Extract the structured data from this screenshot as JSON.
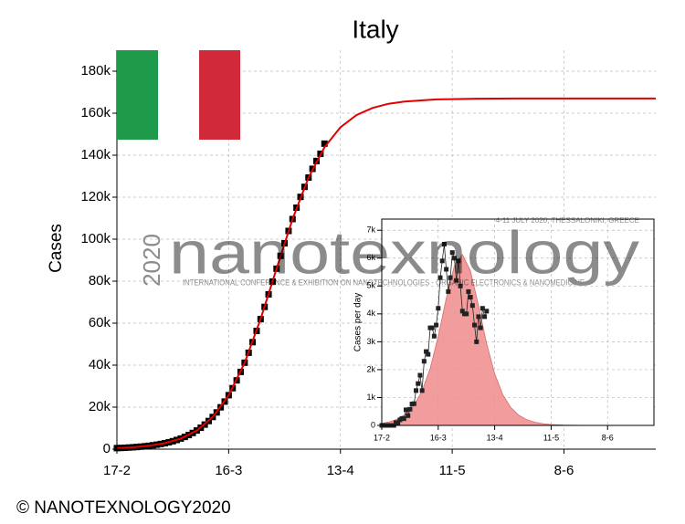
{
  "chart_data": [
    {
      "type": "line",
      "title": "Italy",
      "ylabel": "Cases",
      "xlim": [
        0,
        135
      ],
      "ylim": [
        0,
        190000
      ],
      "xticks": [
        {
          "value": 0,
          "label": "17-2"
        },
        {
          "value": 28,
          "label": "16-3"
        },
        {
          "value": 56,
          "label": "13-4"
        },
        {
          "value": 84,
          "label": "11-5"
        },
        {
          "value": 112,
          "label": "8-6"
        }
      ],
      "yticks": [
        0,
        {
          "value": 20000,
          "label": "20k"
        },
        {
          "value": 40000,
          "label": "40k"
        },
        {
          "value": 60000,
          "label": "60k"
        },
        {
          "value": 80000,
          "label": "80k"
        },
        {
          "value": 100000,
          "label": "100k"
        },
        {
          "value": 120000,
          "label": "120k"
        },
        {
          "value": 140000,
          "label": "140k"
        },
        {
          "value": 160000,
          "label": "160k"
        },
        {
          "value": 180000,
          "label": "180k"
        }
      ],
      "grid": true,
      "series": [
        {
          "color": "#000000",
          "mode": "markers",
          "x": [
            0,
            1,
            2,
            3,
            4,
            5,
            6,
            7,
            8,
            9,
            10,
            11,
            12,
            13,
            14,
            15,
            16,
            17,
            18,
            19,
            20,
            21,
            22,
            23,
            24,
            25,
            26,
            27,
            28,
            29,
            30,
            31,
            32,
            33,
            34,
            35,
            36,
            37,
            38,
            39,
            40,
            41,
            42,
            43,
            44,
            45,
            46,
            47,
            48,
            49,
            50,
            51,
            52
          ],
          "values": [
            494,
            572,
            661,
            766,
            887,
            1026,
            1186,
            1374,
            1589,
            1839,
            2125,
            2459,
            2840,
            3281,
            3784,
            4372,
            5044,
            5819,
            6707,
            7705,
            8869,
            10190,
            11686,
            13392,
            15314,
            17487,
            19928,
            22659,
            25692,
            29033,
            32745,
            36784,
            41174,
            45904,
            50961,
            56305,
            61920,
            67748,
            73731,
            79828,
            85950,
            92062,
            98063,
            103920,
            109580,
            115010,
            120130,
            124910,
            129360,
            133490,
            137230,
            140680,
            145500
          ]
        },
        {
          "color": "#e00000",
          "mode": "line",
          "x": [
            0,
            4,
            8,
            12,
            16,
            20,
            24,
            28,
            32,
            36,
            40,
            44,
            48,
            52,
            56,
            60,
            64,
            68,
            72,
            80,
            90,
            100,
            120,
            135
          ],
          "values": [
            494,
            887,
            1589,
            2840,
            5044,
            8869,
            15314,
            25692,
            41174,
            61920,
            85950,
            109580,
            129360,
            143770,
            153240,
            159080,
            162500,
            164470,
            165580,
            166560,
            166900,
            167000,
            167000,
            167000
          ]
        }
      ]
    },
    {
      "type": "line",
      "ylabel": "Cases per day",
      "xlim": [
        0,
        135
      ],
      "ylim": [
        0,
        7400
      ],
      "xticks": [
        {
          "value": 0,
          "label": "17-2"
        },
        {
          "value": 28,
          "label": "16-3"
        },
        {
          "value": 56,
          "label": "13-4"
        },
        {
          "value": 84,
          "label": "11-5"
        },
        {
          "value": 112,
          "label": "8-6"
        }
      ],
      "yticks": [
        0,
        {
          "value": 1000,
          "label": "1k"
        },
        {
          "value": 2000,
          "label": "2k"
        },
        {
          "value": 3000,
          "label": "3k"
        },
        {
          "value": 4000,
          "label": "4k"
        },
        {
          "value": 5000,
          "label": "5k"
        },
        {
          "value": 6000,
          "label": "6k"
        },
        {
          "value": 7000,
          "label": "7k"
        }
      ],
      "grid": true,
      "series": [
        {
          "color": "#f08c8c",
          "mode": "area",
          "x": [
            0,
            4,
            8,
            12,
            16,
            20,
            24,
            28,
            32,
            36,
            40,
            44,
            48,
            52,
            56,
            60,
            64,
            68,
            72,
            76,
            80,
            84,
            90,
            100
          ],
          "values": [
            73,
            130,
            231,
            410,
            719,
            1235,
            2044,
            3195,
            4557,
            5725,
            6128,
            5541,
            4286,
            2938,
            1856,
            1108,
            643,
            365,
            204,
            113,
            62,
            34,
            13,
            2
          ]
        },
        {
          "color": "#222222",
          "mode": "line+markers",
          "x": [
            0,
            1,
            2,
            3,
            4,
            5,
            6,
            7,
            8,
            9,
            10,
            11,
            12,
            13,
            14,
            15,
            16,
            17,
            18,
            19,
            20,
            21,
            22,
            23,
            24,
            25,
            26,
            27,
            28,
            29,
            30,
            31,
            32,
            33,
            34,
            35,
            36,
            37,
            38,
            39,
            40,
            41,
            42,
            43,
            44,
            45,
            46,
            47,
            48,
            49,
            50,
            51,
            52
          ],
          "values": [
            0,
            0,
            0,
            0,
            0,
            0,
            0,
            100,
            100,
            200,
            250,
            240,
            560,
            350,
            580,
            770,
            780,
            1250,
            1500,
            1800,
            1250,
            2300,
            2650,
            2550,
            3500,
            3500,
            3200,
            3600,
            4200,
            5300,
            5900,
            6500,
            5600,
            4800,
            5300,
            6200,
            6000,
            5200,
            5900,
            5000,
            4100,
            4000,
            4000,
            4800,
            4600,
            4300,
            3600,
            3000,
            3900,
            3500,
            4200,
            3900,
            4100
          ]
        }
      ]
    }
  ],
  "watermark": {
    "word": "nanotexnology",
    "year": "2020",
    "subtitle": "INTERNATIONAL CONFERENCE & EXHIBITION ON NANOTECHNOLOGIES - ORGANIC ELECTRONICS & NANOMEDICINE",
    "date": "4-11 JULY 2020, THESSALONIKI, GREECE"
  },
  "footer": "© NANOTEXNOLOGY2020"
}
